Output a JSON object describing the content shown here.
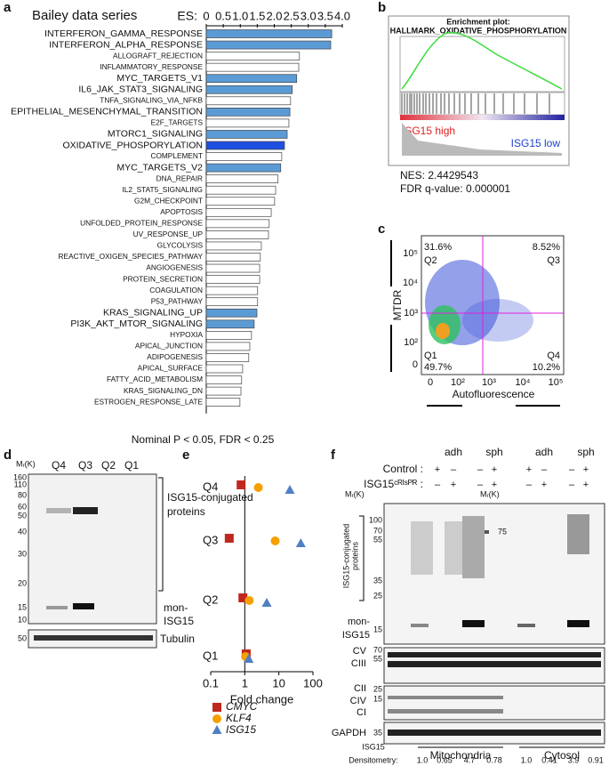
{
  "chart_data": [
    {
      "type": "bar",
      "orientation": "horizontal",
      "title": "Bailey data series",
      "xlabel": "ES:",
      "note": "Nominal P < 0.05, FDR < 0.25",
      "categories": [
        "INTERFERON_GAMMA_RESPONSE",
        "INTERFERON_ALPHA_RESPONSE",
        "ALLOGRAFT_REJECTION",
        "INFLAMMATORY_RESPONSE",
        "MYC_TARGETS_V1",
        "IL6_JAK_STAT3_SIGNALING",
        "TNFA_SIGNALING_VIA_NFKB",
        "EPITHELIAL_MESENCHYMAL_TRANSITION",
        "E2F_TARGETS",
        "MTORC1_SIGNALING",
        "OXIDATIVE_PHOSPORYLATION",
        "COMPLEMENT",
        "MYC_TARGETS_V2",
        "DNA_REPAIR",
        "IL2_STAT5_SIGNALING",
        "G2M_CHECKPOINT",
        "APOPTOSIS",
        "UNFOLDED_PROTEIN_RESPONSE",
        "UV_RESPONSE_UP",
        "GLYCOLYSIS",
        "REACTIVE_OXIGEN_SPECIES_PATHWAY",
        "ANGIOGENESIS",
        "PROTEIN_SECRETION",
        "COAGULATION",
        "P53_PATHWAY",
        "KRAS_SIGNALING_UP",
        "PI3K_AKT_MTOR_SIGNALING",
        "HYPOXIA",
        "APICAL_JUNCTION",
        "ADIPOGENESIS",
        "APICAL_SURFACE",
        "FATTY_ACID_METABOLISM",
        "KRAS_SIGNALING_DN",
        "ESTROGEN_RESPONSE_LATE"
      ],
      "values": [
        3.69,
        3.66,
        2.74,
        2.72,
        2.66,
        2.53,
        2.48,
        2.46,
        2.43,
        2.38,
        2.3,
        2.22,
        2.19,
        2.11,
        2.04,
        2.01,
        1.91,
        1.85,
        1.83,
        1.62,
        1.59,
        1.57,
        1.57,
        1.51,
        1.51,
        1.49,
        1.41,
        1.33,
        1.28,
        1.25,
        1.07,
        1.04,
        1.02,
        0.99
      ],
      "colors": [
        "#5b9bd5",
        "#5b9bd5",
        "#ffffff",
        "#ffffff",
        "#5b9bd5",
        "#5b9bd5",
        "#ffffff",
        "#5b9bd5",
        "#ffffff",
        "#5b9bd5",
        "#1f4fe0",
        "#ffffff",
        "#5b9bd5",
        "#ffffff",
        "#ffffff",
        "#ffffff",
        "#ffffff",
        "#ffffff",
        "#ffffff",
        "#ffffff",
        "#ffffff",
        "#ffffff",
        "#ffffff",
        "#ffffff",
        "#ffffff",
        "#5b9bd5",
        "#5b9bd5",
        "#ffffff",
        "#ffffff",
        "#ffffff",
        "#ffffff",
        "#ffffff",
        "#ffffff",
        "#ffffff"
      ],
      "xlim": [
        0,
        4
      ],
      "xticks": [
        0,
        0.5,
        {
          "value": 1,
          "label": "1.0"
        },
        1.5,
        {
          "value": 2,
          "label": "2.0"
        },
        2.5,
        {
          "value": 3,
          "label": "3.0"
        },
        3.5,
        {
          "value": 4,
          "label": "4.0"
        }
      ]
    },
    {
      "type": "scatter",
      "xlabel": "Fold change",
      "xscale": "log",
      "xlim": [
        0.1,
        100
      ],
      "xticks": [
        0.1,
        1,
        10,
        100
      ],
      "categories": [
        "Q4",
        "Q3",
        "Q2",
        "Q1"
      ],
      "series": [
        {
          "name": "CMYC",
          "color": "#c0281e",
          "marker": "square",
          "values": [
            0.78,
            0.35,
            0.88,
            1.1
          ]
        },
        {
          "name": "KLF4",
          "color": "#f5a000",
          "marker": "circle",
          "values": [
            2.5,
            7.8,
            1.35,
            1.05
          ]
        },
        {
          "name": "ISG15",
          "color": "#4f7fc4",
          "marker": "triangle",
          "values": [
            21,
            44,
            4.4,
            1.3
          ]
        }
      ]
    }
  ],
  "letters": [
    "a",
    "b",
    "c",
    "d",
    "e",
    "f"
  ],
  "panel_b": {
    "title": "Enrichment plot:",
    "subtitle": "HALLMARK_OXIDATIVE_PHOSPHORYLATION",
    "high": "ISG15 high",
    "low": "ISG15 low",
    "nes": "NES: 2.4429543",
    "fdr": "FDR q-value: 0.000001"
  },
  "panel_c": {
    "ylabel": "MTDR",
    "xlabel": "Autofluorescence",
    "q2": "31.6%",
    "q2_name": "Q2",
    "q3": "8.52%",
    "q3_name": "Q3",
    "q1": "49.7%",
    "q1_name": "Q1",
    "q4": "10.2%",
    "q4_name": "Q4",
    "yticks": [
      "10⁵",
      "10⁴",
      "10³",
      "10²",
      "0"
    ],
    "xticks": [
      "0",
      "10²",
      "10³",
      "10⁴",
      "10⁵"
    ]
  },
  "panel_d": {
    "mr": "Mᵣ(K)",
    "lanes": [
      "Q4",
      "Q3",
      "Q2",
      "Q1"
    ],
    "ticks": [
      "160",
      "110",
      "80",
      "60",
      "50",
      "40",
      "30",
      "20",
      "15",
      "10"
    ],
    "tubulin_tick": "50",
    "conj": [
      "ISG15-conjugated",
      "proteins"
    ],
    "mon": [
      "mon-",
      "ISG15"
    ],
    "tubulin": "Tubulin"
  },
  "panel_f": {
    "groups": [
      "adh",
      "sph",
      "adh",
      "sph"
    ],
    "control": "Control :",
    "crispr": "ISG15ᶜᴿᴵˢᴾᴿ :",
    "control_signs": [
      "+",
      "–",
      "–",
      "+",
      "+",
      "–",
      "–",
      "+"
    ],
    "crispr_signs": [
      "–",
      "+",
      "–",
      "+",
      "–",
      "+",
      "–",
      "+"
    ],
    "mr": [
      "Mᵣ(K)",
      "Mᵣ(K)"
    ],
    "ticks": [
      "100",
      "70",
      "55",
      "35",
      "25",
      "15"
    ],
    "right_tick": "75",
    "conj": [
      "ISG15-conjugated",
      "proteins"
    ],
    "mon": [
      "mon-",
      "ISG15"
    ],
    "cv": [
      "CV",
      "CIII"
    ],
    "cv_ticks": [
      "70",
      "55"
    ],
    "cii": [
      "CII",
      "CIV",
      "CI"
    ],
    "cii_ticks": [
      "25",
      "15"
    ],
    "gapdh": "GAPDH",
    "gapdh_tick": "35",
    "fractions": [
      "Mitochondria",
      "Cytosol"
    ],
    "dens_title": [
      "ISG15",
      "Densitometry:"
    ],
    "dens_mito": [
      "1.0",
      "0.65",
      "4.7",
      "0.78"
    ],
    "dens_cyto": [
      "1.0",
      "0.41",
      "3.9",
      "0.91"
    ]
  }
}
